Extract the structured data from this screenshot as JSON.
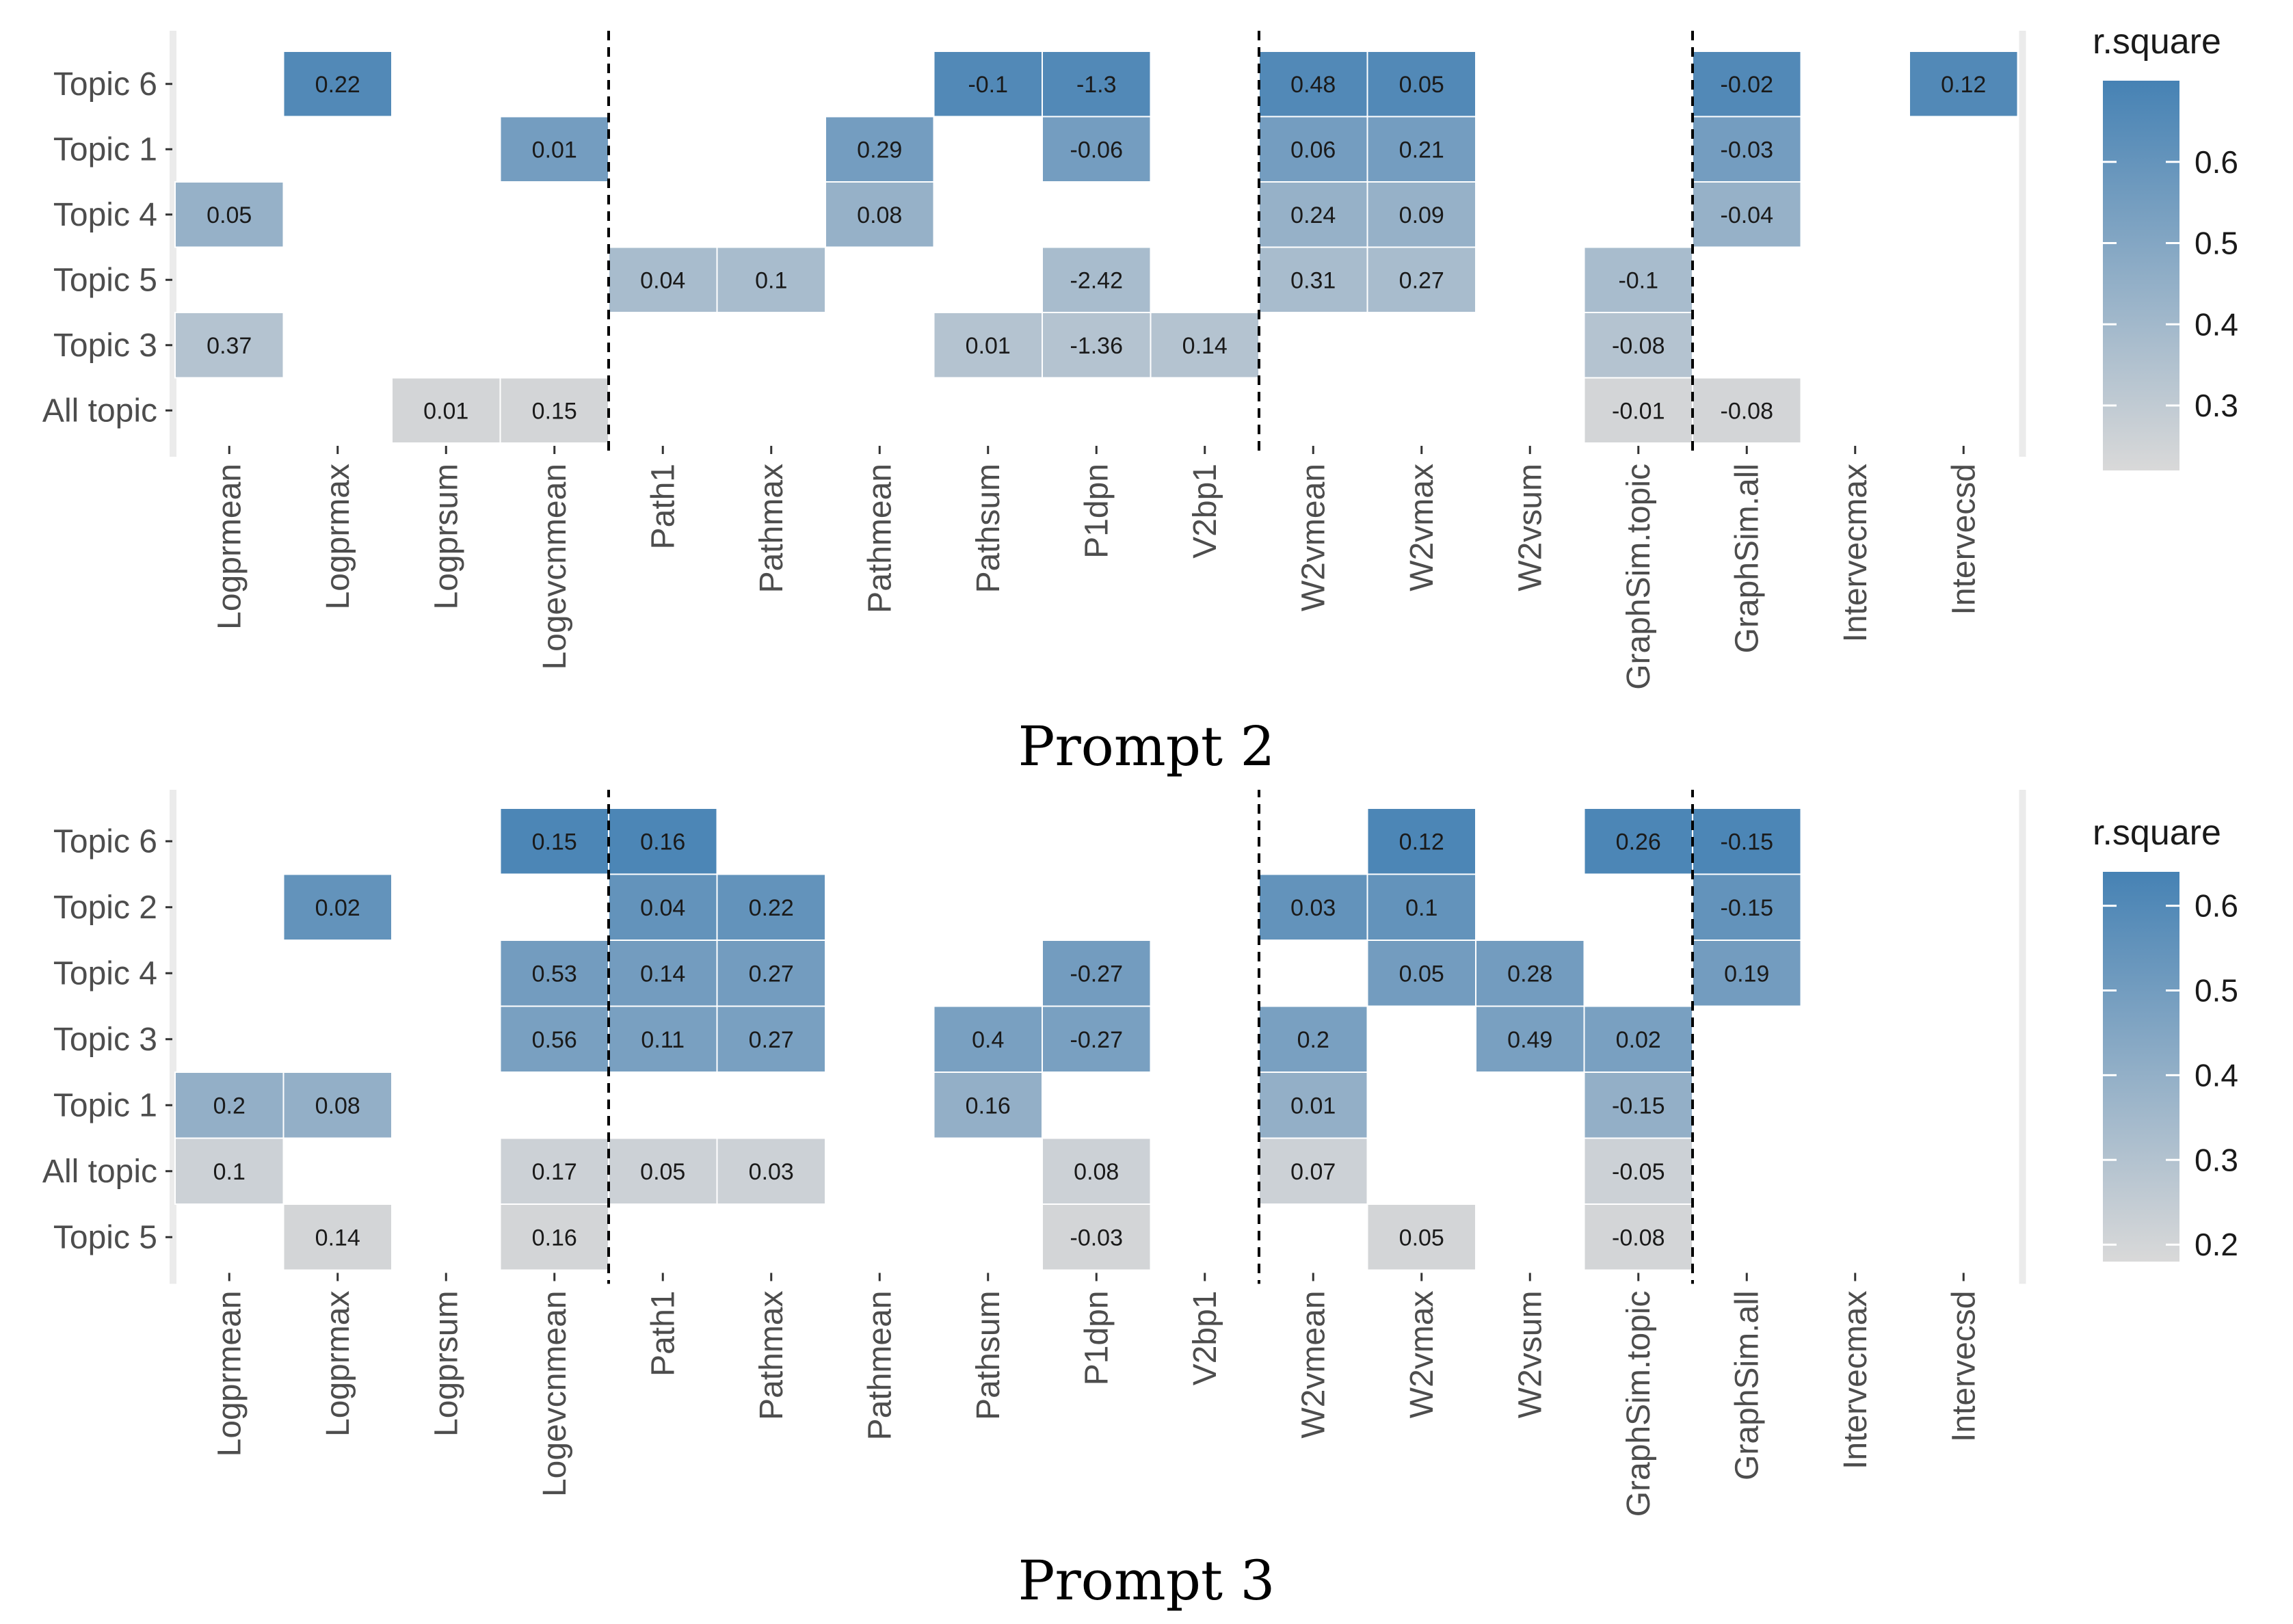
{
  "chart_data": [
    {
      "type": "heatmap",
      "caption": "Prompt 2",
      "legend_title": "r.square",
      "legend_ticks": [
        "0.6",
        "0.5",
        "0.4",
        "0.3"
      ],
      "legend_tick_values": [
        0.6,
        0.5,
        0.4,
        0.3
      ],
      "color_range": [
        0.22,
        0.7
      ],
      "color_low": "#d9d9d9",
      "color_high": "#4682b4",
      "columns": [
        "Logprmean",
        "Logprmax",
        "Logprsum",
        "Logevcnmean",
        "Path1",
        "Pathmax",
        "Pathmean",
        "Pathsum",
        "P1dpn",
        "V2bp1",
        "W2vmean",
        "W2vmax",
        "W2vsum",
        "GraphSim.topic",
        "GraphSim.all",
        "Intervecmax",
        "Intervecsd"
      ],
      "rows": [
        "Topic 6",
        "Topic 1",
        "Topic 4",
        "Topic 5",
        "Topic 3",
        "All topic"
      ],
      "separators_after_column": [
        3,
        9,
        13
      ],
      "cells": [
        {
          "row": 0,
          "col": 1,
          "label": "0.22",
          "r2": 0.66
        },
        {
          "row": 0,
          "col": 7,
          "label": "-0.1",
          "r2": 0.66
        },
        {
          "row": 0,
          "col": 8,
          "label": "-1.3",
          "r2": 0.66
        },
        {
          "row": 0,
          "col": 10,
          "label": "0.48",
          "r2": 0.66
        },
        {
          "row": 0,
          "col": 11,
          "label": "0.05",
          "r2": 0.66
        },
        {
          "row": 0,
          "col": 14,
          "label": "-0.02",
          "r2": 0.66
        },
        {
          "row": 0,
          "col": 16,
          "label": "0.12",
          "r2": 0.66
        },
        {
          "row": 1,
          "col": 3,
          "label": "0.01",
          "r2": 0.55
        },
        {
          "row": 1,
          "col": 6,
          "label": "0.29",
          "r2": 0.55
        },
        {
          "row": 1,
          "col": 8,
          "label": "-0.06",
          "r2": 0.55
        },
        {
          "row": 1,
          "col": 10,
          "label": "0.06",
          "r2": 0.55
        },
        {
          "row": 1,
          "col": 11,
          "label": "0.21",
          "r2": 0.55
        },
        {
          "row": 1,
          "col": 14,
          "label": "-0.03",
          "r2": 0.55
        },
        {
          "row": 2,
          "col": 0,
          "label": "0.05",
          "r2": 0.44
        },
        {
          "row": 2,
          "col": 6,
          "label": "0.08",
          "r2": 0.44
        },
        {
          "row": 2,
          "col": 10,
          "label": "0.24",
          "r2": 0.44
        },
        {
          "row": 2,
          "col": 11,
          "label": "0.09",
          "r2": 0.44
        },
        {
          "row": 2,
          "col": 14,
          "label": "-0.04",
          "r2": 0.44
        },
        {
          "row": 3,
          "col": 4,
          "label": "0.04",
          "r2": 0.38
        },
        {
          "row": 3,
          "col": 5,
          "label": "0.1",
          "r2": 0.38
        },
        {
          "row": 3,
          "col": 8,
          "label": "-2.42",
          "r2": 0.38
        },
        {
          "row": 3,
          "col": 10,
          "label": "0.31",
          "r2": 0.38
        },
        {
          "row": 3,
          "col": 11,
          "label": "0.27",
          "r2": 0.38
        },
        {
          "row": 3,
          "col": 13,
          "label": "-0.1",
          "r2": 0.38
        },
        {
          "row": 4,
          "col": 0,
          "label": "0.37",
          "r2": 0.34
        },
        {
          "row": 4,
          "col": 7,
          "label": "0.01",
          "r2": 0.34
        },
        {
          "row": 4,
          "col": 8,
          "label": "-1.36",
          "r2": 0.34
        },
        {
          "row": 4,
          "col": 9,
          "label": "0.14",
          "r2": 0.34
        },
        {
          "row": 4,
          "col": 13,
          "label": "-0.08",
          "r2": 0.34
        },
        {
          "row": 5,
          "col": 2,
          "label": "0.01",
          "r2": 0.24
        },
        {
          "row": 5,
          "col": 3,
          "label": "0.15",
          "r2": 0.24
        },
        {
          "row": 5,
          "col": 13,
          "label": "-0.01",
          "r2": 0.24
        },
        {
          "row": 5,
          "col": 14,
          "label": "-0.08",
          "r2": 0.24
        }
      ]
    },
    {
      "type": "heatmap",
      "caption": "Prompt 3",
      "legend_title": "r.square",
      "legend_ticks": [
        "0.6",
        "0.5",
        "0.4",
        "0.3",
        "0.2"
      ],
      "legend_tick_values": [
        0.6,
        0.5,
        0.4,
        0.3,
        0.2
      ],
      "color_range": [
        0.18,
        0.64
      ],
      "color_low": "#d9d9d9",
      "color_high": "#4682b4",
      "columns": [
        "Logprmean",
        "Logprmax",
        "Logprsum",
        "Logevcnmean",
        "Path1",
        "Pathmax",
        "Pathmean",
        "Pathsum",
        "P1dpn",
        "V2bp1",
        "W2vmean",
        "W2vmax",
        "W2vsum",
        "GraphSim.topic",
        "GraphSim.all",
        "Intervecmax",
        "Intervecsd"
      ],
      "rows": [
        "Topic 6",
        "Topic 2",
        "Topic 4",
        "Topic 3",
        "Topic 1",
        "All topic",
        "Topic 5"
      ],
      "separators_after_column": [
        3,
        9,
        13
      ],
      "cells": [
        {
          "row": 0,
          "col": 3,
          "label": "0.15",
          "r2": 0.62
        },
        {
          "row": 0,
          "col": 4,
          "label": "0.16",
          "r2": 0.62
        },
        {
          "row": 0,
          "col": 11,
          "label": "0.12",
          "r2": 0.62
        },
        {
          "row": 0,
          "col": 13,
          "label": "0.26",
          "r2": 0.62
        },
        {
          "row": 0,
          "col": 14,
          "label": "-0.15",
          "r2": 0.62
        },
        {
          "row": 1,
          "col": 1,
          "label": "0.02",
          "r2": 0.55
        },
        {
          "row": 1,
          "col": 4,
          "label": "0.04",
          "r2": 0.55
        },
        {
          "row": 1,
          "col": 5,
          "label": "0.22",
          "r2": 0.55
        },
        {
          "row": 1,
          "col": 10,
          "label": "0.03",
          "r2": 0.55
        },
        {
          "row": 1,
          "col": 11,
          "label": "0.1",
          "r2": 0.55
        },
        {
          "row": 1,
          "col": 14,
          "label": "-0.15",
          "r2": 0.55
        },
        {
          "row": 2,
          "col": 3,
          "label": "0.53",
          "r2": 0.5
        },
        {
          "row": 2,
          "col": 4,
          "label": "0.14",
          "r2": 0.5
        },
        {
          "row": 2,
          "col": 5,
          "label": "0.27",
          "r2": 0.5
        },
        {
          "row": 2,
          "col": 8,
          "label": "-0.27",
          "r2": 0.5
        },
        {
          "row": 2,
          "col": 11,
          "label": "0.05",
          "r2": 0.5
        },
        {
          "row": 2,
          "col": 12,
          "label": "0.28",
          "r2": 0.5
        },
        {
          "row": 2,
          "col": 14,
          "label": "0.19",
          "r2": 0.5
        },
        {
          "row": 3,
          "col": 3,
          "label": "0.56",
          "r2": 0.48
        },
        {
          "row": 3,
          "col": 4,
          "label": "0.11",
          "r2": 0.48
        },
        {
          "row": 3,
          "col": 5,
          "label": "0.27",
          "r2": 0.48
        },
        {
          "row": 3,
          "col": 7,
          "label": "0.4",
          "r2": 0.48
        },
        {
          "row": 3,
          "col": 8,
          "label": "-0.27",
          "r2": 0.48
        },
        {
          "row": 3,
          "col": 10,
          "label": "0.2",
          "r2": 0.48
        },
        {
          "row": 3,
          "col": 12,
          "label": "0.49",
          "r2": 0.48
        },
        {
          "row": 3,
          "col": 13,
          "label": "0.02",
          "r2": 0.48
        },
        {
          "row": 4,
          "col": 0,
          "label": "0.2",
          "r2": 0.4
        },
        {
          "row": 4,
          "col": 1,
          "label": "0.08",
          "r2": 0.4
        },
        {
          "row": 4,
          "col": 7,
          "label": "0.16",
          "r2": 0.4
        },
        {
          "row": 4,
          "col": 10,
          "label": "0.01",
          "r2": 0.4
        },
        {
          "row": 4,
          "col": 13,
          "label": "-0.15",
          "r2": 0.4
        },
        {
          "row": 5,
          "col": 0,
          "label": "0.1",
          "r2": 0.22
        },
        {
          "row": 5,
          "col": 3,
          "label": "0.17",
          "r2": 0.22
        },
        {
          "row": 5,
          "col": 4,
          "label": "0.05",
          "r2": 0.22
        },
        {
          "row": 5,
          "col": 5,
          "label": "0.03",
          "r2": 0.22
        },
        {
          "row": 5,
          "col": 8,
          "label": "0.08",
          "r2": 0.22
        },
        {
          "row": 5,
          "col": 10,
          "label": "0.07",
          "r2": 0.22
        },
        {
          "row": 5,
          "col": 13,
          "label": "-0.05",
          "r2": 0.22
        },
        {
          "row": 6,
          "col": 1,
          "label": "0.14",
          "r2": 0.2
        },
        {
          "row": 6,
          "col": 3,
          "label": "0.16",
          "r2": 0.2
        },
        {
          "row": 6,
          "col": 8,
          "label": "-0.03",
          "r2": 0.2
        },
        {
          "row": 6,
          "col": 11,
          "label": "0.05",
          "r2": 0.2
        },
        {
          "row": 6,
          "col": 13,
          "label": "-0.08",
          "r2": 0.2
        }
      ]
    }
  ]
}
